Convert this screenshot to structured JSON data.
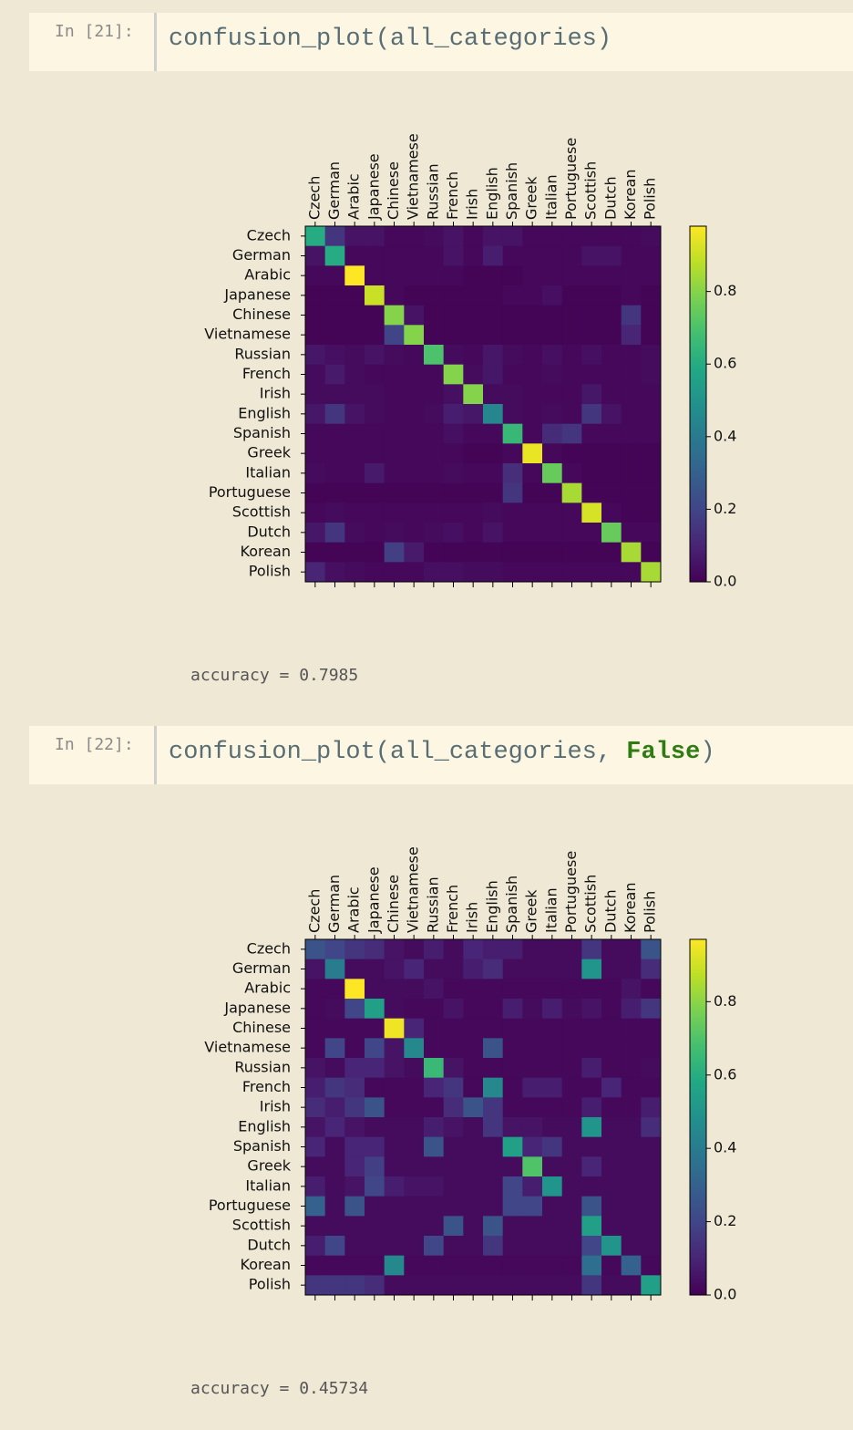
{
  "cells": [
    {
      "prompt": "In [21]:",
      "code": [
        "confusion_plot(all_categories)"
      ],
      "output": "accuracy = 0.7985"
    },
    {
      "prompt": "In [22]:",
      "code": [
        "confusion_plot(all_categories, ",
        "False",
        ")"
      ],
      "output": "accuracy = 0.45734"
    }
  ],
  "chart_data": [
    {
      "type": "heatmap",
      "colormap": "viridis",
      "clim": [
        0,
        0.98
      ],
      "cticks": [
        {
          "value": 0,
          "label": "0.0"
        },
        0.2,
        0.4,
        0.6,
        0.8
      ],
      "x_categories": [
        "Czech",
        "German",
        "Arabic",
        "Japanese",
        "Chinese",
        "Vietnamese",
        "Russian",
        "French",
        "Irish",
        "English",
        "Spanish",
        "Greek",
        "Italian",
        "Portuguese",
        "Scottish",
        "Dutch",
        "Korean",
        "Polish"
      ],
      "y_categories": [
        "Czech",
        "German",
        "Arabic",
        "Japanese",
        "Chinese",
        "Vietnamese",
        "Russian",
        "French",
        "Irish",
        "English",
        "Spanish",
        "Greek",
        "Italian",
        "Portuguese",
        "Scottish",
        "Dutch",
        "Korean",
        "Polish"
      ],
      "values": [
        [
          0.6,
          0.15,
          0.05,
          0.05,
          0.02,
          0.02,
          0.03,
          0.05,
          0.02,
          0.05,
          0.05,
          0.02,
          0.02,
          0.02,
          0.02,
          0.02,
          0.02,
          0.03
        ],
        [
          0.05,
          0.6,
          0.02,
          0.02,
          0.02,
          0.02,
          0.02,
          0.05,
          0.02,
          0.08,
          0.02,
          0.02,
          0.02,
          0.02,
          0.05,
          0.05,
          0.02,
          0.02
        ],
        [
          0.02,
          0.02,
          0.98,
          0.02,
          0.02,
          0.02,
          0.02,
          0.02,
          0.01,
          0.01,
          0.01,
          0.02,
          0.02,
          0.02,
          0.02,
          0.02,
          0.02,
          0.02
        ],
        [
          0.01,
          0.01,
          0.01,
          0.9,
          0.02,
          0.01,
          0.01,
          0.01,
          0.01,
          0.01,
          0.02,
          0.02,
          0.04,
          0.01,
          0.01,
          0.01,
          0.02,
          0.01
        ],
        [
          0.01,
          0.01,
          0.01,
          0.01,
          0.8,
          0.05,
          0.01,
          0.01,
          0.01,
          0.01,
          0.01,
          0.01,
          0.01,
          0.01,
          0.01,
          0.01,
          0.15,
          0.01
        ],
        [
          0.01,
          0.01,
          0.01,
          0.01,
          0.2,
          0.8,
          0.01,
          0.01,
          0.01,
          0.01,
          0.01,
          0.01,
          0.01,
          0.01,
          0.01,
          0.01,
          0.1,
          0.01
        ],
        [
          0.06,
          0.04,
          0.03,
          0.05,
          0.03,
          0.02,
          0.7,
          0.03,
          0.02,
          0.06,
          0.03,
          0.02,
          0.04,
          0.02,
          0.04,
          0.02,
          0.02,
          0.03
        ],
        [
          0.03,
          0.07,
          0.03,
          0.02,
          0.02,
          0.02,
          0.02,
          0.8,
          0.03,
          0.06,
          0.02,
          0.02,
          0.03,
          0.02,
          0.02,
          0.02,
          0.02,
          0.03
        ],
        [
          0.03,
          0.03,
          0.03,
          0.03,
          0.02,
          0.02,
          0.02,
          0.04,
          0.8,
          0.03,
          0.03,
          0.02,
          0.02,
          0.02,
          0.06,
          0.02,
          0.02,
          0.02
        ],
        [
          0.06,
          0.15,
          0.05,
          0.03,
          0.02,
          0.02,
          0.03,
          0.08,
          0.06,
          0.45,
          0.03,
          0.02,
          0.03,
          0.02,
          0.15,
          0.05,
          0.02,
          0.02
        ],
        [
          0.02,
          0.02,
          0.02,
          0.02,
          0.02,
          0.02,
          0.02,
          0.04,
          0.02,
          0.02,
          0.65,
          0.02,
          0.12,
          0.15,
          0.02,
          0.02,
          0.02,
          0.02
        ],
        [
          0.02,
          0.02,
          0.02,
          0.02,
          0.02,
          0.02,
          0.02,
          0.02,
          0.01,
          0.01,
          0.02,
          0.95,
          0.02,
          0.01,
          0.01,
          0.01,
          0.01,
          0.01
        ],
        [
          0.03,
          0.02,
          0.02,
          0.07,
          0.02,
          0.02,
          0.02,
          0.03,
          0.02,
          0.02,
          0.13,
          0.02,
          0.75,
          0.02,
          0.01,
          0.01,
          0.01,
          0.01
        ],
        [
          0.01,
          0.01,
          0.01,
          0.01,
          0.01,
          0.01,
          0.01,
          0.01,
          0.01,
          0.01,
          0.15,
          0.01,
          0.01,
          0.85,
          0.01,
          0.01,
          0.01,
          0.01
        ],
        [
          0.02,
          0.03,
          0.02,
          0.02,
          0.02,
          0.02,
          0.02,
          0.02,
          0.02,
          0.03,
          0.02,
          0.02,
          0.02,
          0.02,
          0.92,
          0.02,
          0.01,
          0.01
        ],
        [
          0.06,
          0.15,
          0.03,
          0.02,
          0.03,
          0.02,
          0.03,
          0.04,
          0.02,
          0.05,
          0.02,
          0.02,
          0.02,
          0.02,
          0.02,
          0.75,
          0.02,
          0.02
        ],
        [
          0.01,
          0.01,
          0.01,
          0.01,
          0.18,
          0.07,
          0.01,
          0.01,
          0.01,
          0.01,
          0.01,
          0.01,
          0.01,
          0.01,
          0.01,
          0.01,
          0.85,
          0.01
        ],
        [
          0.1,
          0.04,
          0.03,
          0.02,
          0.02,
          0.02,
          0.04,
          0.04,
          0.03,
          0.03,
          0.02,
          0.02,
          0.02,
          0.02,
          0.02,
          0.02,
          0.02,
          0.85
        ]
      ]
    },
    {
      "type": "heatmap",
      "colormap": "viridis",
      "clim": [
        0,
        0.97
      ],
      "cticks": [
        {
          "value": 0,
          "label": "0.0"
        },
        0.2,
        0.4,
        0.6,
        0.8
      ],
      "x_categories": [
        "Czech",
        "German",
        "Arabic",
        "Japanese",
        "Chinese",
        "Vietnamese",
        "Russian",
        "French",
        "Irish",
        "English",
        "Spanish",
        "Greek",
        "Italian",
        "Portuguese",
        "Scottish",
        "Dutch",
        "Korean",
        "Polish"
      ],
      "y_categories": [
        "Czech",
        "German",
        "Arabic",
        "Japanese",
        "Chinese",
        "Vietnamese",
        "Russian",
        "French",
        "Irish",
        "English",
        "Spanish",
        "Greek",
        "Italian",
        "Portuguese",
        "Scottish",
        "Dutch",
        "Korean",
        "Polish"
      ],
      "values": [
        [
          0.25,
          0.2,
          0.15,
          0.12,
          0.05,
          0.03,
          0.08,
          0.03,
          0.1,
          0.08,
          0.08,
          0.03,
          0.03,
          0.03,
          0.15,
          0.03,
          0.03,
          0.25
        ],
        [
          0.05,
          0.4,
          0.03,
          0.03,
          0.05,
          0.1,
          0.03,
          0.03,
          0.08,
          0.12,
          0.03,
          0.03,
          0.03,
          0.03,
          0.5,
          0.03,
          0.03,
          0.12
        ],
        [
          0.02,
          0.02,
          0.97,
          0.03,
          0.03,
          0.03,
          0.05,
          0.02,
          0.02,
          0.02,
          0.02,
          0.02,
          0.02,
          0.02,
          0.02,
          0.02,
          0.05,
          0.02
        ],
        [
          0.02,
          0.03,
          0.2,
          0.55,
          0.03,
          0.02,
          0.02,
          0.05,
          0.02,
          0.02,
          0.08,
          0.03,
          0.08,
          0.03,
          0.05,
          0.02,
          0.08,
          0.15
        ],
        [
          0.02,
          0.02,
          0.02,
          0.02,
          0.95,
          0.1,
          0.02,
          0.02,
          0.02,
          0.02,
          0.02,
          0.02,
          0.02,
          0.02,
          0.02,
          0.02,
          0.02,
          0.02
        ],
        [
          0.02,
          0.2,
          0.02,
          0.2,
          0.05,
          0.45,
          0.02,
          0.02,
          0.02,
          0.25,
          0.02,
          0.02,
          0.02,
          0.02,
          0.02,
          0.02,
          0.02,
          0.02
        ],
        [
          0.05,
          0.03,
          0.1,
          0.1,
          0.05,
          0.03,
          0.65,
          0.05,
          0.02,
          0.02,
          0.02,
          0.02,
          0.02,
          0.02,
          0.08,
          0.02,
          0.02,
          0.03
        ],
        [
          0.08,
          0.15,
          0.12,
          0.02,
          0.02,
          0.02,
          0.1,
          0.15,
          0.02,
          0.45,
          0.02,
          0.08,
          0.08,
          0.02,
          0.02,
          0.1,
          0.02,
          0.02
        ],
        [
          0.12,
          0.08,
          0.15,
          0.25,
          0.02,
          0.02,
          0.02,
          0.12,
          0.25,
          0.15,
          0.02,
          0.02,
          0.02,
          0.02,
          0.08,
          0.02,
          0.02,
          0.08
        ],
        [
          0.05,
          0.1,
          0.05,
          0.03,
          0.03,
          0.03,
          0.08,
          0.05,
          0.03,
          0.15,
          0.05,
          0.05,
          0.03,
          0.03,
          0.5,
          0.03,
          0.03,
          0.12
        ],
        [
          0.1,
          0.03,
          0.1,
          0.1,
          0.03,
          0.03,
          0.25,
          0.03,
          0.03,
          0.03,
          0.55,
          0.1,
          0.15,
          0.03,
          0.03,
          0.03,
          0.03,
          0.03
        ],
        [
          0.03,
          0.03,
          0.1,
          0.18,
          0.03,
          0.03,
          0.03,
          0.03,
          0.03,
          0.03,
          0.03,
          0.7,
          0.03,
          0.03,
          0.1,
          0.03,
          0.03,
          0.03
        ],
        [
          0.08,
          0.03,
          0.05,
          0.2,
          0.08,
          0.05,
          0.05,
          0.03,
          0.03,
          0.03,
          0.2,
          0.08,
          0.5,
          0.03,
          0.03,
          0.03,
          0.03,
          0.03
        ],
        [
          0.3,
          0.03,
          0.25,
          0.03,
          0.03,
          0.03,
          0.03,
          0.03,
          0.03,
          0.03,
          0.2,
          0.2,
          0.03,
          0.03,
          0.25,
          0.03,
          0.03,
          0.03
        ],
        [
          0.03,
          0.03,
          0.03,
          0.03,
          0.03,
          0.03,
          0.03,
          0.25,
          0.03,
          0.25,
          0.03,
          0.03,
          0.03,
          0.03,
          0.55,
          0.03,
          0.03,
          0.03
        ],
        [
          0.08,
          0.2,
          0.03,
          0.03,
          0.03,
          0.03,
          0.2,
          0.03,
          0.03,
          0.15,
          0.03,
          0.03,
          0.03,
          0.03,
          0.2,
          0.5,
          0.03,
          0.03
        ],
        [
          0.02,
          0.02,
          0.02,
          0.02,
          0.45,
          0.02,
          0.02,
          0.02,
          0.02,
          0.02,
          0.02,
          0.02,
          0.02,
          0.02,
          0.35,
          0.02,
          0.3,
          0.02
        ],
        [
          0.15,
          0.15,
          0.15,
          0.12,
          0.03,
          0.03,
          0.03,
          0.03,
          0.03,
          0.03,
          0.03,
          0.03,
          0.03,
          0.03,
          0.15,
          0.03,
          0.03,
          0.55
        ]
      ]
    }
  ]
}
